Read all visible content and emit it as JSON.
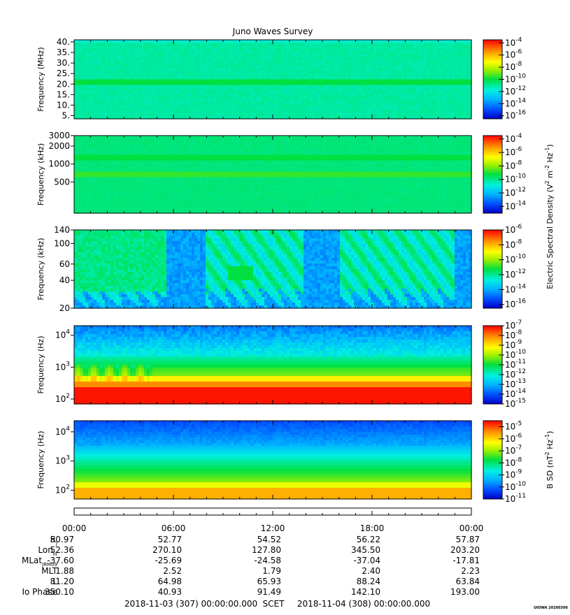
{
  "title": "Juno Waves Survey",
  "footer": {
    "start": "2018-11-03 (307) 00:00:00.000",
    "mid": "SCET",
    "end": "2018-11-04 (308) 00:00:00.000",
    "credit": "UIOWA 20200306"
  },
  "chart_data": {
    "type": "heatmap",
    "panels": [
      {
        "ylabel": "Frequency (MHz)",
        "yscale": "linear",
        "ylim": [
          3.5,
          41
        ],
        "yticks": [
          5,
          10,
          15,
          20,
          25,
          30,
          35,
          40
        ],
        "ytick_labels": [
          "5.",
          "10.",
          "15.",
          "20.",
          "25.",
          "30.",
          "35.",
          "40."
        ],
        "colorbar": {
          "ticks": [
            "10-4",
            "10-6",
            "10-8",
            "10-10",
            "10-12",
            "10-14",
            "10-16"
          ],
          "lim_exp": [
            -16.5,
            -3.5
          ]
        },
        "pattern": "Uniform background near 1e-13 with a brighter band near 21 MHz"
      },
      {
        "ylabel": "Frequency (kHz)",
        "yscale": "log",
        "ylim": [
          150,
          3000
        ],
        "yticks": [
          500,
          1000,
          2000,
          3000
        ],
        "ytick_labels": [
          "500",
          "1000",
          "2000",
          "3000"
        ],
        "colorbar": {
          "ticks": [
            "10-4",
            "10-6",
            "10-8",
            "10-10",
            "10-12",
            "10-14"
          ],
          "lim_exp": [
            -15,
            -3.5
          ]
        },
        "pattern": "Uniform background with bands near 650 kHz and 1400 kHz"
      },
      {
        "ylabel": "Frequency (kHz)",
        "yscale": "log",
        "ylim": [
          20,
          140
        ],
        "yticks": [
          20,
          40,
          60,
          100,
          140
        ],
        "ytick_labels": [
          "20",
          "40",
          "60",
          "100",
          "140"
        ],
        "colorbar": {
          "ticks": [
            "10-6",
            "10-8",
            "10-10",
            "10-12",
            "10-14",
            "10-16"
          ],
          "lim_exp": [
            -16.5,
            -6
          ]
        },
        "pattern": "Patchy emissions, strong 00:00-06:00, quiet gaps near 06:00 and 13:00"
      },
      {
        "ylabel": "Frequency (Hz)",
        "yscale": "log",
        "ylim": [
          70,
          20000
        ],
        "yticks": [
          100,
          1000,
          10000
        ],
        "ytick_labels": [
          "10^2",
          "10^3",
          "10^4"
        ],
        "colorbar": {
          "ticks": [
            "10-7",
            "10-8",
            "10-9",
            "10-10",
            "10-11",
            "10-12",
            "10-13",
            "10-14",
            "10-15"
          ],
          "lim_exp": [
            -15,
            -7
          ]
        },
        "pattern": "Intense below ~250 Hz, decreasing with frequency"
      },
      {
        "ylabel": "Frequency (Hz)",
        "yscale": "log",
        "ylim": [
          50,
          24000
        ],
        "yticks": [
          100,
          1000,
          10000
        ],
        "ytick_labels": [
          "10^2",
          "10^3",
          "10^4"
        ],
        "colorbar": {
          "ticks": [
            "10-5",
            "10-6",
            "10-7",
            "10-8",
            "10-9",
            "10-10",
            "10-11"
          ],
          "lim_exp": [
            -11,
            -4.5
          ]
        },
        "pattern": "Strong below ~200 Hz, declining to background above 5 kHz"
      }
    ],
    "colorbar_labels": {
      "electric": "Electric Spectral Density (V^2 m^-2 Hz^-1)",
      "magnetic": "B SD (nT^2 Hz^-1)"
    },
    "xaxis": {
      "hours": [
        0,
        6,
        12,
        18,
        24
      ],
      "tick_labels": [
        "00:00",
        "06:00",
        "12:00",
        "18:00",
        "00:00"
      ]
    },
    "ephemeris": [
      {
        "label": "R",
        "sub": "J",
        "values": [
          "50.97",
          "52.77",
          "54.52",
          "56.22",
          "57.87"
        ]
      },
      {
        "label": "Lon",
        "sub": "III",
        "values": [
          "52.36",
          "270.10",
          "127.80",
          "345.50",
          "203.20"
        ]
      },
      {
        "label": "MLat",
        "sub": "JRM09",
        "values": [
          "-37.60",
          "-25.69",
          "-24.58",
          "-37.04",
          "-17.81"
        ]
      },
      {
        "label": "MLT",
        "sub": "",
        "values": [
          "1.88",
          "2.52",
          "1.79",
          "2.40",
          "2.23"
        ]
      },
      {
        "label": "L",
        "sub": "",
        "values": [
          "81.20",
          "64.98",
          "65.93",
          "88.24",
          "63.84"
        ]
      },
      {
        "label": "Io Phase",
        "sub": "",
        "values": [
          "350.10",
          "40.93",
          "91.49",
          "142.10",
          "193.00"
        ]
      }
    ]
  }
}
